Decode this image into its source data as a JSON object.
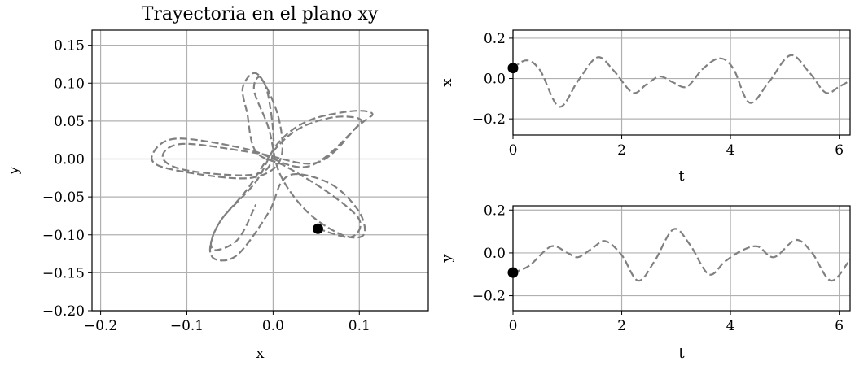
{
  "chart_data": [
    {
      "id": "xy",
      "type": "line",
      "title": "Trayectoria en el plano xy",
      "xlabel": "x",
      "ylabel": "y",
      "xlim": [
        -0.21,
        0.18
      ],
      "ylim": [
        -0.2,
        0.17
      ],
      "xticks": [
        -0.2,
        -0.1,
        0.0,
        0.1
      ],
      "xtick_labels": [
        "−0.2",
        "−0.1",
        "0.0",
        "0.1"
      ],
      "yticks": [
        0.15,
        0.1,
        0.05,
        0.0,
        -0.05,
        -0.1,
        -0.15,
        -0.2
      ],
      "ytick_labels": [
        "0.15",
        "0.10",
        "0.05",
        "0.00",
        "−0.05",
        "−0.10",
        "−0.15",
        "−0.20"
      ],
      "grid": true,
      "line_color": "#808080",
      "line_style": "dashed",
      "marker_color": "#000000",
      "marker": {
        "x": 0.052,
        "y": -0.092
      },
      "path": [
        {
          "x": 0.052,
          "y": -0.092
        },
        {
          "x": 0.09,
          "y": -0.103
        },
        {
          "x": 0.1,
          "y": -0.08
        },
        {
          "x": 0.065,
          "y": -0.045
        },
        {
          "x": 0.015,
          "y": -0.01
        },
        {
          "x": -0.02,
          "y": 0.01
        },
        {
          "x": -0.03,
          "y": 0.06
        },
        {
          "x": -0.035,
          "y": 0.095
        },
        {
          "x": -0.018,
          "y": 0.112
        },
        {
          "x": 0.005,
          "y": 0.06
        },
        {
          "x": 0.01,
          "y": 0.005
        },
        {
          "x": -0.01,
          "y": -0.02
        },
        {
          "x": -0.05,
          "y": -0.025
        },
        {
          "x": -0.13,
          "y": -0.01
        },
        {
          "x": -0.138,
          "y": 0.01
        },
        {
          "x": -0.11,
          "y": 0.027
        },
        {
          "x": -0.03,
          "y": 0.013
        },
        {
          "x": 0.04,
          "y": -0.01
        },
        {
          "x": 0.1,
          "y": 0.045
        },
        {
          "x": 0.115,
          "y": 0.06
        },
        {
          "x": 0.09,
          "y": 0.063
        },
        {
          "x": 0.04,
          "y": 0.05
        },
        {
          "x": 0.005,
          "y": 0.02
        },
        {
          "x": -0.02,
          "y": -0.03
        },
        {
          "x": -0.06,
          "y": -0.08
        },
        {
          "x": -0.073,
          "y": -0.117
        },
        {
          "x": -0.065,
          "y": -0.133
        },
        {
          "x": -0.04,
          "y": -0.125
        },
        {
          "x": -0.005,
          "y": -0.07
        },
        {
          "x": 0.01,
          "y": -0.03
        },
        {
          "x": 0.03,
          "y": -0.02
        },
        {
          "x": 0.07,
          "y": -0.035
        },
        {
          "x": 0.1,
          "y": -0.07
        },
        {
          "x": 0.105,
          "y": -0.1
        },
        {
          "x": 0.08,
          "y": -0.1
        },
        {
          "x": 0.04,
          "y": -0.07
        },
        {
          "x": 0.008,
          "y": -0.02
        },
        {
          "x": -0.005,
          "y": 0.04
        },
        {
          "x": -0.022,
          "y": 0.09
        },
        {
          "x": -0.015,
          "y": 0.108
        },
        {
          "x": -0.005,
          "y": 0.08
        },
        {
          "x": 0.0,
          "y": 0.01
        },
        {
          "x": -0.02,
          "y": -0.02
        },
        {
          "x": -0.1,
          "y": -0.015
        },
        {
          "x": -0.128,
          "y": 0.002
        },
        {
          "x": -0.105,
          "y": 0.02
        },
        {
          "x": -0.02,
          "y": 0.008
        },
        {
          "x": 0.05,
          "y": -0.005
        },
        {
          "x": 0.095,
          "y": 0.04
        },
        {
          "x": 0.1,
          "y": 0.053
        },
        {
          "x": 0.07,
          "y": 0.055
        },
        {
          "x": 0.03,
          "y": 0.04
        },
        {
          "x": 0.0,
          "y": 0.01
        },
        {
          "x": -0.03,
          "y": -0.04
        },
        {
          "x": -0.06,
          "y": -0.08
        },
        {
          "x": -0.072,
          "y": -0.11
        },
        {
          "x": -0.065,
          "y": -0.12
        },
        {
          "x": -0.04,
          "y": -0.105
        },
        {
          "x": -0.02,
          "y": -0.06
        }
      ]
    },
    {
      "id": "xt",
      "type": "line",
      "xlabel": "t",
      "ylabel": "x",
      "xlim": [
        0,
        6.2
      ],
      "ylim": [
        -0.28,
        0.24
      ],
      "xticks": [
        0,
        2,
        4,
        6
      ],
      "xtick_labels": [
        "0",
        "2",
        "4",
        "6"
      ],
      "yticks": [
        0.2,
        0.0,
        -0.2
      ],
      "ytick_labels": [
        "0.2",
        "0.0",
        "−0.2"
      ],
      "grid": true,
      "line_color": "#808080",
      "line_style": "dashed",
      "marker_color": "#000000",
      "marker": {
        "x": 0.0,
        "y": 0.052
      },
      "path": [
        {
          "x": 0.0,
          "y": 0.052
        },
        {
          "x": 0.25,
          "y": 0.09
        },
        {
          "x": 0.5,
          "y": 0.04
        },
        {
          "x": 0.85,
          "y": -0.14
        },
        {
          "x": 1.2,
          "y": -0.01
        },
        {
          "x": 1.55,
          "y": 0.105
        },
        {
          "x": 1.85,
          "y": 0.04
        },
        {
          "x": 2.2,
          "y": -0.07
        },
        {
          "x": 2.45,
          "y": -0.03
        },
        {
          "x": 2.7,
          "y": 0.01
        },
        {
          "x": 2.95,
          "y": -0.02
        },
        {
          "x": 3.2,
          "y": -0.04
        },
        {
          "x": 3.5,
          "y": 0.05
        },
        {
          "x": 3.8,
          "y": 0.1
        },
        {
          "x": 4.05,
          "y": 0.05
        },
        {
          "x": 4.35,
          "y": -0.12
        },
        {
          "x": 4.7,
          "y": -0.02
        },
        {
          "x": 5.1,
          "y": 0.115
        },
        {
          "x": 5.45,
          "y": 0.03
        },
        {
          "x": 5.75,
          "y": -0.07
        },
        {
          "x": 6.0,
          "y": -0.04
        },
        {
          "x": 6.2,
          "y": -0.01
        }
      ]
    },
    {
      "id": "yt",
      "type": "line",
      "xlabel": "t",
      "ylabel": "y",
      "xlim": [
        0,
        6.2
      ],
      "ylim": [
        -0.27,
        0.22
      ],
      "xticks": [
        0,
        2,
        4,
        6
      ],
      "xtick_labels": [
        "0",
        "2",
        "4",
        "6"
      ],
      "yticks": [
        0.2,
        0.0,
        -0.2
      ],
      "ytick_labels": [
        "0.2",
        "0.0",
        "−0.2"
      ],
      "grid": true,
      "line_color": "#808080",
      "line_style": "dashed",
      "marker_color": "#000000",
      "marker": {
        "x": 0.0,
        "y": -0.092
      },
      "path": [
        {
          "x": 0.0,
          "y": -0.092
        },
        {
          "x": 0.3,
          "y": -0.06
        },
        {
          "x": 0.7,
          "y": 0.03
        },
        {
          "x": 1.0,
          "y": 0.0
        },
        {
          "x": 1.2,
          "y": -0.02
        },
        {
          "x": 1.45,
          "y": 0.02
        },
        {
          "x": 1.7,
          "y": 0.055
        },
        {
          "x": 2.0,
          "y": -0.01
        },
        {
          "x": 2.3,
          "y": -0.13
        },
        {
          "x": 2.6,
          "y": -0.04
        },
        {
          "x": 2.95,
          "y": 0.11
        },
        {
          "x": 3.25,
          "y": 0.04
        },
        {
          "x": 3.6,
          "y": -0.1
        },
        {
          "x": 3.9,
          "y": -0.04
        },
        {
          "x": 4.2,
          "y": 0.01
        },
        {
          "x": 4.5,
          "y": 0.03
        },
        {
          "x": 4.8,
          "y": -0.02
        },
        {
          "x": 5.2,
          "y": 0.06
        },
        {
          "x": 5.5,
          "y": 0.0
        },
        {
          "x": 5.85,
          "y": -0.13
        },
        {
          "x": 6.2,
          "y": -0.03
        }
      ]
    }
  ]
}
